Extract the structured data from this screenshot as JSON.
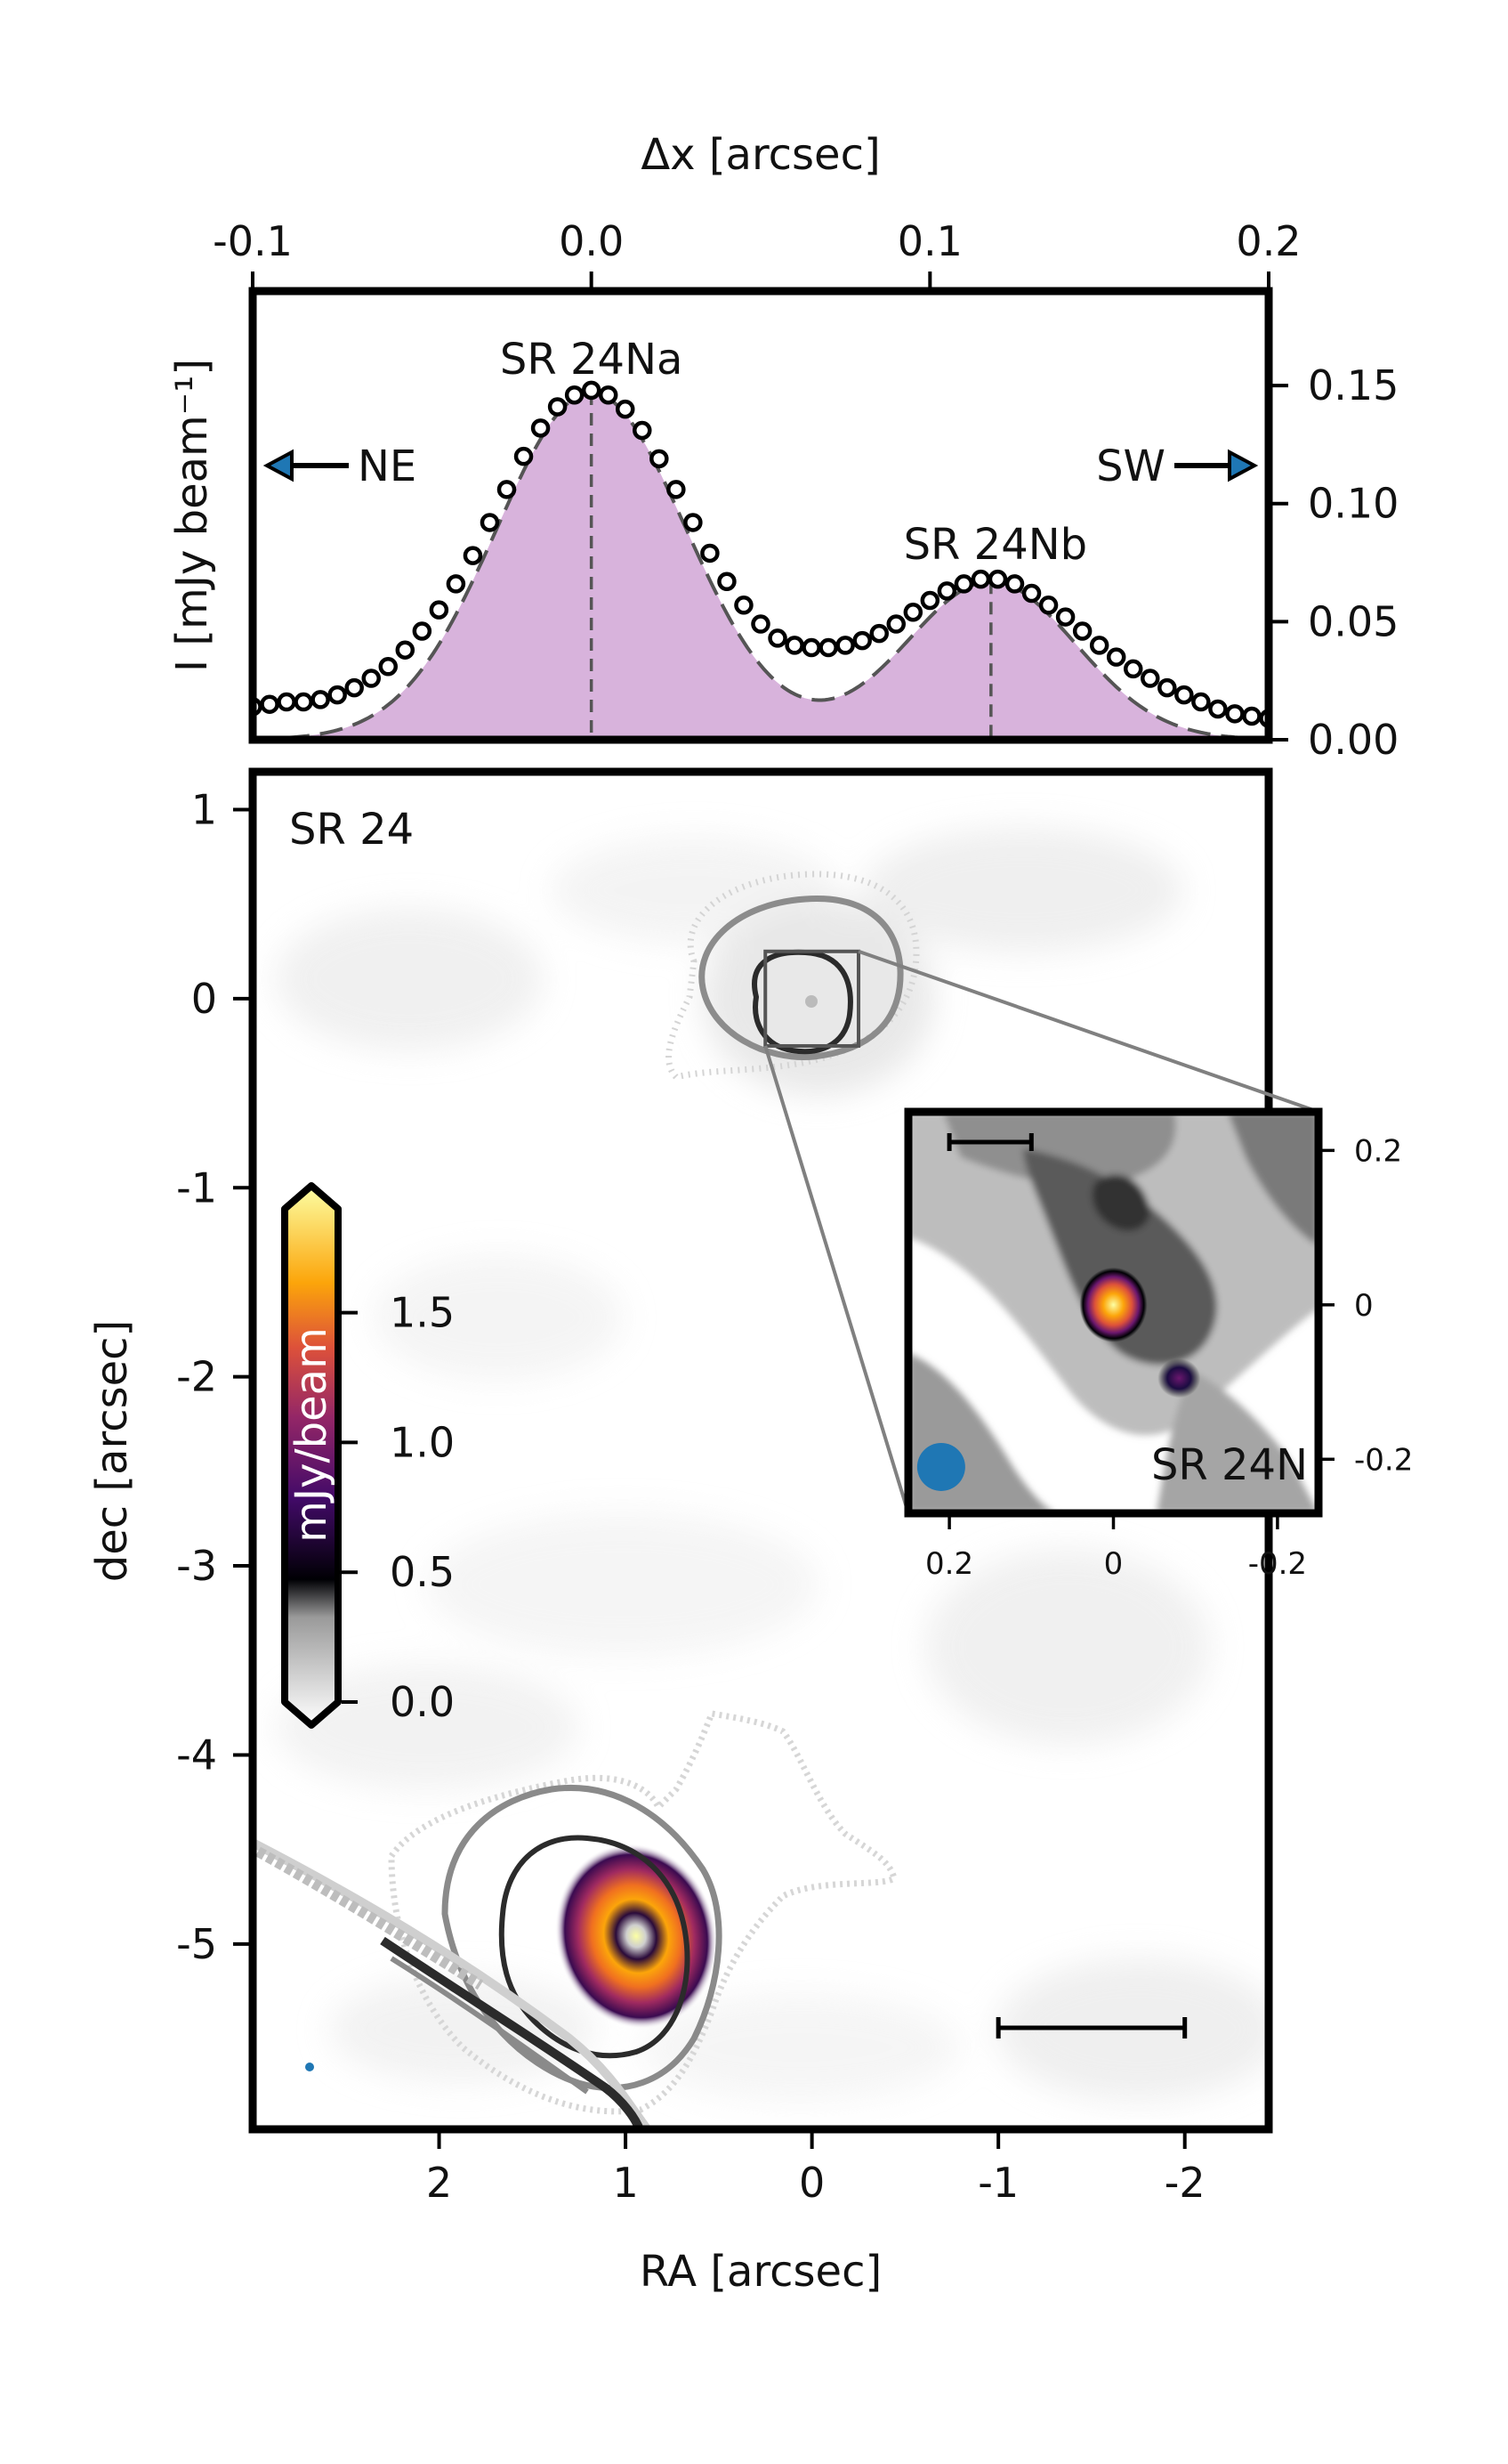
{
  "chart_data": [
    {
      "type": "line",
      "panel": "profile",
      "xlabel_top": "Δx [arcsec]",
      "ylabel_left": "I [mJy beam⁻¹]",
      "xlim": [
        -0.1,
        0.2
      ],
      "ylim": [
        0,
        0.19
      ],
      "x_ticks": [
        "-0.1",
        "0.0",
        "0.1",
        "0.2"
      ],
      "y_ticks": [
        "0.00",
        "0.05",
        "0.10",
        "0.15"
      ],
      "grid": false,
      "annotations": {
        "peak_a": "SR 24Na",
        "peak_b": "SR 24Nb",
        "left_dir": "NE",
        "right_dir": "SW"
      },
      "peak_positions": [
        0.0,
        0.118
      ],
      "colors": {
        "model_fill": "#d8b3dc",
        "model_line": "#555555",
        "points": "#000000"
      },
      "series": [
        {
          "kind": "points",
          "x": [
            -0.1,
            -0.095,
            -0.09,
            -0.085,
            -0.08,
            -0.075,
            -0.07,
            -0.065,
            -0.06,
            -0.055,
            -0.05,
            -0.045,
            -0.04,
            -0.035,
            -0.03,
            -0.025,
            -0.02,
            -0.015,
            -0.01,
            -0.005,
            0.0,
            0.005,
            0.01,
            0.015,
            0.02,
            0.025,
            0.03,
            0.035,
            0.04,
            0.045,
            0.05,
            0.055,
            0.06,
            0.065,
            0.07,
            0.075,
            0.08,
            0.085,
            0.09,
            0.095,
            0.1,
            0.105,
            0.11,
            0.115,
            0.12,
            0.125,
            0.13,
            0.135,
            0.14,
            0.145,
            0.15,
            0.155,
            0.16,
            0.165,
            0.17,
            0.175,
            0.18,
            0.185,
            0.19,
            0.195,
            0.2
          ],
          "y": [
            0.014,
            0.015,
            0.016,
            0.016,
            0.017,
            0.019,
            0.022,
            0.026,
            0.031,
            0.038,
            0.046,
            0.055,
            0.066,
            0.078,
            0.092,
            0.106,
            0.12,
            0.132,
            0.141,
            0.146,
            0.148,
            0.146,
            0.14,
            0.131,
            0.119,
            0.106,
            0.092,
            0.079,
            0.067,
            0.057,
            0.049,
            0.043,
            0.04,
            0.039,
            0.039,
            0.04,
            0.042,
            0.045,
            0.049,
            0.054,
            0.059,
            0.063,
            0.066,
            0.068,
            0.068,
            0.066,
            0.062,
            0.057,
            0.052,
            0.046,
            0.04,
            0.035,
            0.03,
            0.026,
            0.022,
            0.019,
            0.016,
            0.013,
            0.011,
            0.01,
            0.009
          ]
        },
        {
          "kind": "model",
          "components": [
            {
              "center": 0.0,
              "amplitude": 0.147,
              "sigma": 0.028
            },
            {
              "center": 0.118,
              "amplitude": 0.067,
              "sigma": 0.025
            }
          ]
        }
      ]
    },
    {
      "type": "heatmap",
      "panel": "image",
      "xlabel": "RA [arcsec]",
      "ylabel": "dec [arcsec]",
      "xlim": [
        3.0,
        -2.45
      ],
      "ylim": [
        -5.98,
        1.2
      ],
      "x_ticks": [
        2,
        1,
        0,
        -1,
        -2
      ],
      "x_tick_labels": [
        "2",
        "1",
        "0",
        "-1",
        "-2"
      ],
      "y_ticks": [
        1,
        0,
        -1,
        -2,
        -3,
        -4,
        -5
      ],
      "y_tick_labels": [
        "1",
        "0",
        "-1",
        "-2",
        "-3",
        "-4",
        "-5"
      ],
      "label": "SR 24",
      "colormap": "inferno",
      "colorbar": {
        "label": "mJy/beam",
        "ticks": [
          "0.0",
          "0.5",
          "1.0",
          "1.5"
        ],
        "vmin": 0.0,
        "vmax": 1.9,
        "extend": "both"
      },
      "contour_colors": [
        "#d6d6d6",
        "#8c8c8c",
        "#2b2b2b"
      ],
      "scale_bar": {
        "from": -1,
        "to": -2
      },
      "beam_color": "#1f77b4",
      "zoom_box": {
        "ra": [
          0.25,
          -0.25
        ],
        "dec": [
          -0.25,
          0.25
        ]
      }
    },
    {
      "type": "heatmap",
      "panel": "inset",
      "label": "SR 24N",
      "xlim": [
        0.25,
        -0.25
      ],
      "ylim": [
        -0.27,
        0.25
      ],
      "x_ticks": [
        0.2,
        0,
        -0.2
      ],
      "x_tick_labels": [
        "0.2",
        "0",
        "-0.2"
      ],
      "y_ticks": [
        0.2,
        0,
        -0.2
      ],
      "y_tick_labels": [
        "0.2",
        "0",
        "-0.2"
      ],
      "sources": [
        {
          "ra": 0.0,
          "dec": 0.0
        },
        {
          "ra": -0.08,
          "dec": -0.095
        }
      ],
      "scale_bar": {
        "from": 0.2,
        "to": 0.1
      },
      "beam_color": "#1f77b4"
    }
  ]
}
